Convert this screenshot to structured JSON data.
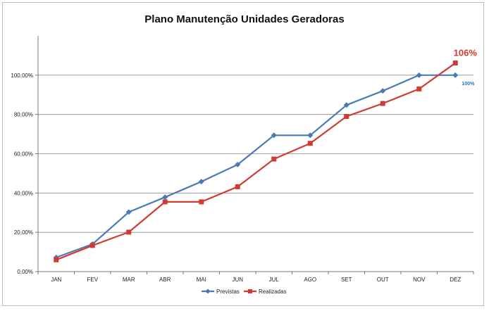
{
  "chart_data": {
    "type": "line",
    "title": "Plano Manutenção Unidades Geradoras",
    "categories": [
      "JAN",
      "FEV",
      "MAR",
      "ABR",
      "MAI",
      "JUN",
      "JUL",
      "AGO",
      "SET",
      "OUT",
      "NOV",
      "DEZ"
    ],
    "ylim": [
      0,
      120
    ],
    "yticks": [
      0,
      20,
      40,
      60,
      80,
      100
    ],
    "ytick_labels": [
      "0,00%",
      "20,00%",
      "40,00%",
      "60,00%",
      "80,00%",
      "100,00%"
    ],
    "grid": true,
    "legend_position": "bottom",
    "series": [
      {
        "name": "Previstas",
        "color": "#4a7ab5",
        "marker": "diamond",
        "values": [
          7.2,
          14,
          30.3,
          37.9,
          45.8,
          54.5,
          69.4,
          69.4,
          84.8,
          92,
          100,
          100
        ]
      },
      {
        "name": "Realizadas",
        "color": "#d13a32",
        "marker": "square",
        "values": [
          6,
          13.3,
          20.1,
          35.5,
          35.5,
          43.2,
          57.3,
          65.3,
          79,
          85.6,
          93,
          106.2
        ]
      }
    ],
    "annotations": [
      {
        "text": "106%",
        "series": "Realizadas",
        "category": "DEZ",
        "color": "#d13a32"
      },
      {
        "text": "100%",
        "series": "Previstas",
        "category": "DEZ",
        "color": "#2e6fb5"
      }
    ]
  }
}
